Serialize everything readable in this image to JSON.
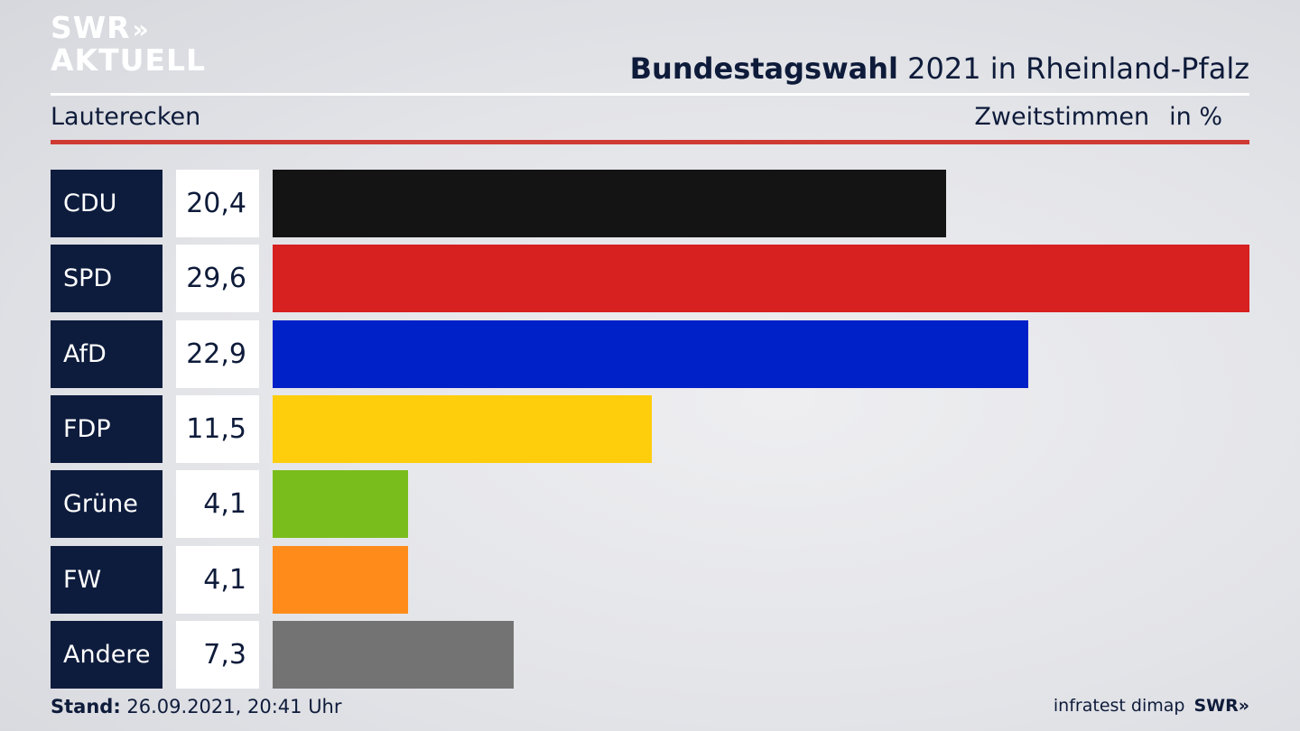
{
  "brand": {
    "line1": "SWR",
    "arrows": "»",
    "line2": "AKTUELL",
    "logo_color": "#ffffff"
  },
  "header": {
    "title_bold": "Bundestagswahl",
    "title_rest": "2021 in Rheinland-Pfalz"
  },
  "subheader": {
    "location": "Lauterecken",
    "metric": "Zweitstimmen",
    "unit": "in %"
  },
  "chart_data": {
    "type": "bar",
    "orientation": "horizontal",
    "categories": [
      "CDU",
      "SPD",
      "AfD",
      "FDP",
      "Grüne",
      "FW",
      "Andere"
    ],
    "values": [
      20.4,
      29.6,
      22.9,
      11.5,
      4.1,
      4.1,
      7.3
    ],
    "value_labels": [
      "20,4",
      "29,6",
      "22,9",
      "11,5",
      "4,1",
      "4,1",
      "7,3"
    ],
    "colors": [
      "#141414",
      "#d72020",
      "#0021c8",
      "#fecd0b",
      "#79bd1c",
      "#ff8c1a",
      "#737373"
    ],
    "xlim": [
      0,
      29.6
    ]
  },
  "footer": {
    "stand_label": "Stand:",
    "stand_value": "26.09.2021, 20:41 Uhr",
    "source": "infratest dimap",
    "broadcaster": "SWR»"
  }
}
